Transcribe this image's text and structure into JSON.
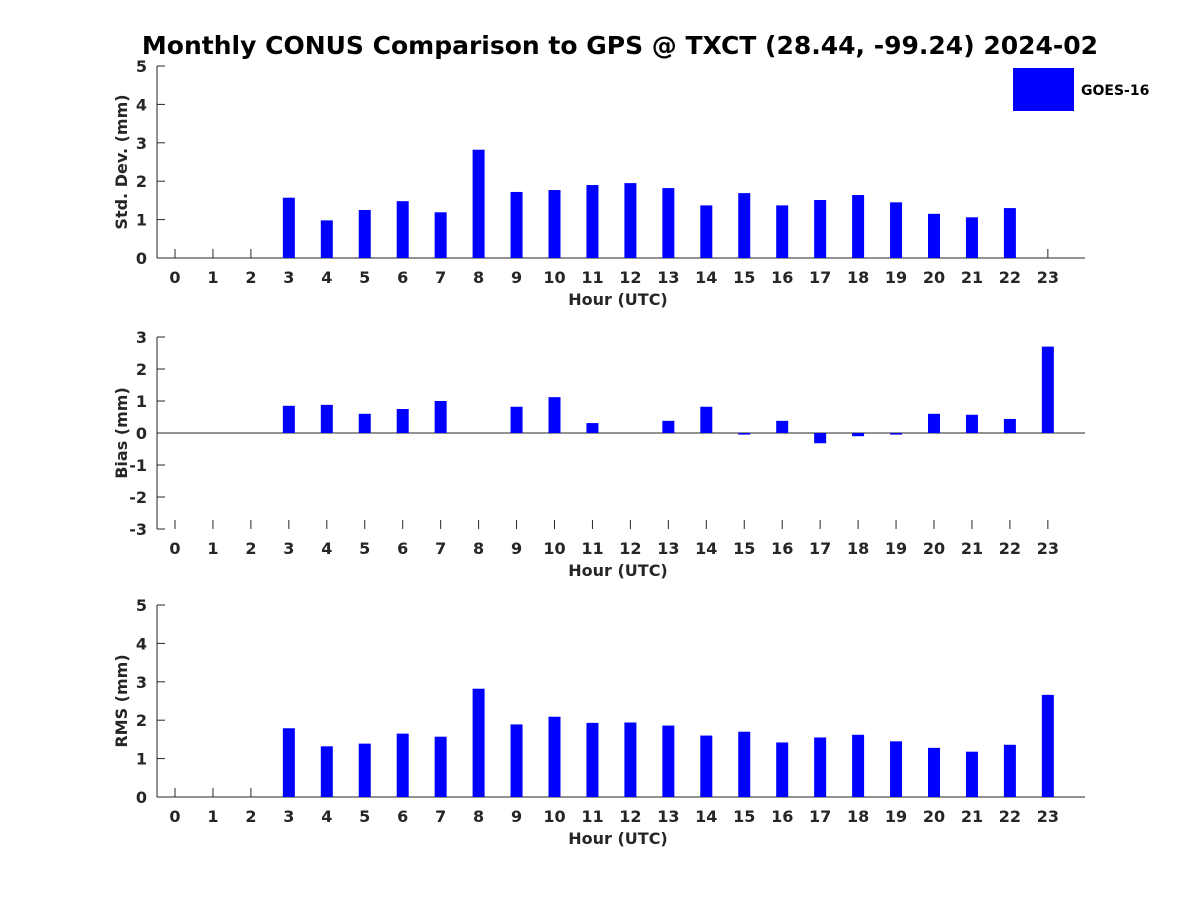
{
  "title": "Monthly CONUS Comparison to GPS @ TXCT (28.44, -99.24) 2024-02",
  "legend": {
    "label": "GOES-16",
    "color": "#0000ff"
  },
  "chart_data": [
    {
      "type": "bar",
      "title": "Monthly CONUS Comparison to GPS @ TXCT (28.44, -99.24) 2024-02",
      "xlabel": "Hour (UTC)",
      "ylabel": "Std. Dev. (mm)",
      "ylim": [
        0,
        5
      ],
      "yticks": [
        0,
        1,
        2,
        3,
        4,
        5
      ],
      "categories": [
        "0",
        "1",
        "2",
        "3",
        "4",
        "5",
        "6",
        "7",
        "8",
        "9",
        "10",
        "11",
        "12",
        "13",
        "14",
        "15",
        "16",
        "17",
        "18",
        "19",
        "20",
        "21",
        "22",
        "23"
      ],
      "series": [
        {
          "name": "GOES-16",
          "color": "#0000ff",
          "values": [
            null,
            null,
            null,
            1.57,
            0.98,
            1.25,
            1.48,
            1.19,
            2.82,
            1.72,
            1.77,
            1.9,
            1.95,
            1.82,
            1.37,
            1.69,
            1.37,
            1.51,
            1.64,
            1.45,
            1.15,
            1.06,
            1.3,
            null
          ]
        }
      ],
      "grid": false,
      "legend_position": "top-right"
    },
    {
      "type": "bar",
      "xlabel": "Hour (UTC)",
      "ylabel": "Bias (mm)",
      "ylim": [
        -3,
        3
      ],
      "yticks": [
        -3,
        -2,
        -1,
        0,
        1,
        2,
        3
      ],
      "categories": [
        "0",
        "1",
        "2",
        "3",
        "4",
        "5",
        "6",
        "7",
        "8",
        "9",
        "10",
        "11",
        "12",
        "13",
        "14",
        "15",
        "16",
        "17",
        "18",
        "19",
        "20",
        "21",
        "22",
        "23"
      ],
      "series": [
        {
          "name": "GOES-16",
          "color": "#0000ff",
          "values": [
            null,
            null,
            null,
            0.85,
            0.88,
            0.6,
            0.75,
            1.0,
            null,
            0.82,
            1.12,
            0.31,
            null,
            0.38,
            0.82,
            -0.05,
            0.38,
            -0.32,
            -0.1,
            -0.05,
            0.6,
            0.57,
            0.44,
            2.7
          ]
        }
      ],
      "grid": false
    },
    {
      "type": "bar",
      "xlabel": "Hour (UTC)",
      "ylabel": "RMS (mm)",
      "ylim": [
        0,
        5
      ],
      "yticks": [
        0,
        1,
        2,
        3,
        4,
        5
      ],
      "categories": [
        "0",
        "1",
        "2",
        "3",
        "4",
        "5",
        "6",
        "7",
        "8",
        "9",
        "10",
        "11",
        "12",
        "13",
        "14",
        "15",
        "16",
        "17",
        "18",
        "19",
        "20",
        "21",
        "22",
        "23"
      ],
      "series": [
        {
          "name": "GOES-16",
          "color": "#0000ff",
          "values": [
            null,
            null,
            null,
            1.79,
            1.32,
            1.39,
            1.65,
            1.57,
            2.82,
            1.89,
            2.09,
            1.93,
            1.94,
            1.86,
            1.6,
            1.7,
            1.42,
            1.55,
            1.62,
            1.45,
            1.28,
            1.18,
            1.36,
            2.66
          ]
        }
      ],
      "grid": false
    }
  ]
}
